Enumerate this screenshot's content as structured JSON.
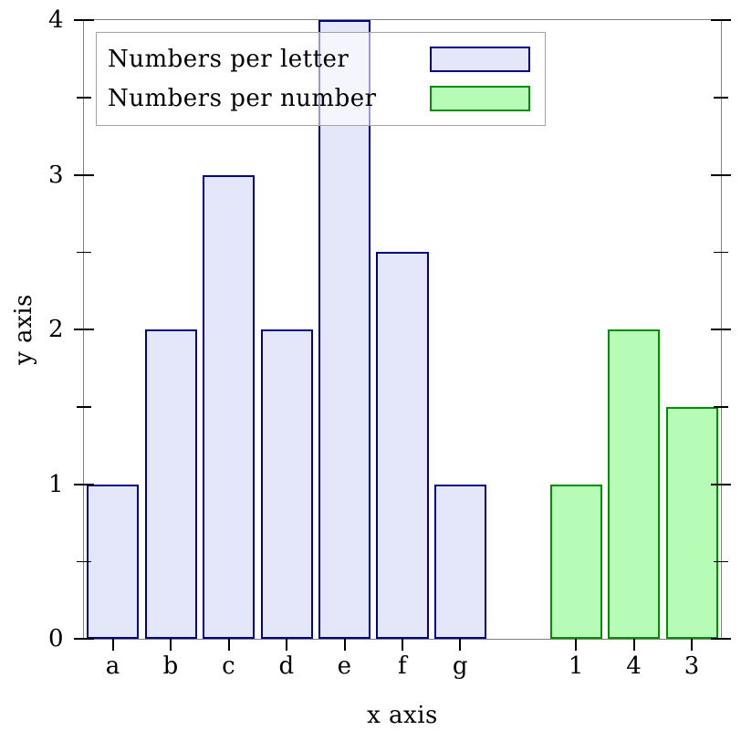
{
  "chart_data": {
    "type": "bar",
    "title": "",
    "xlabel": "x axis",
    "ylabel": "y axis",
    "ylim": [
      0,
      4
    ],
    "y_major_ticks": [
      0,
      1,
      2,
      3,
      4
    ],
    "y_minor_ticks": [
      0.5,
      1.5,
      2.5,
      3.5
    ],
    "grid": false,
    "slot_count": 11,
    "bar_width_fraction": 0.9,
    "legend_position": "top-left",
    "series": [
      {
        "name": "Numbers per letter",
        "fill_color": "#e3e7f9",
        "edge_color": "#00008b",
        "categories": [
          "a",
          "b",
          "c",
          "d",
          "e",
          "f",
          "g"
        ],
        "values": [
          1,
          2,
          3,
          2,
          4,
          2.5,
          1
        ],
        "slots": [
          0,
          1,
          2,
          3,
          4,
          5,
          6
        ]
      },
      {
        "name": "Numbers per number",
        "fill_color": "#b6fcb6",
        "edge_color": "#008f00",
        "categories": [
          "1",
          "4",
          "3"
        ],
        "values": [
          1,
          2,
          1.5
        ],
        "slots": [
          8,
          9,
          10
        ]
      }
    ]
  },
  "colors": {
    "background": "#ffffff",
    "spine": "#808080",
    "tick": "#000000",
    "text": "#000000",
    "legend_border": "#a3a3a3"
  }
}
